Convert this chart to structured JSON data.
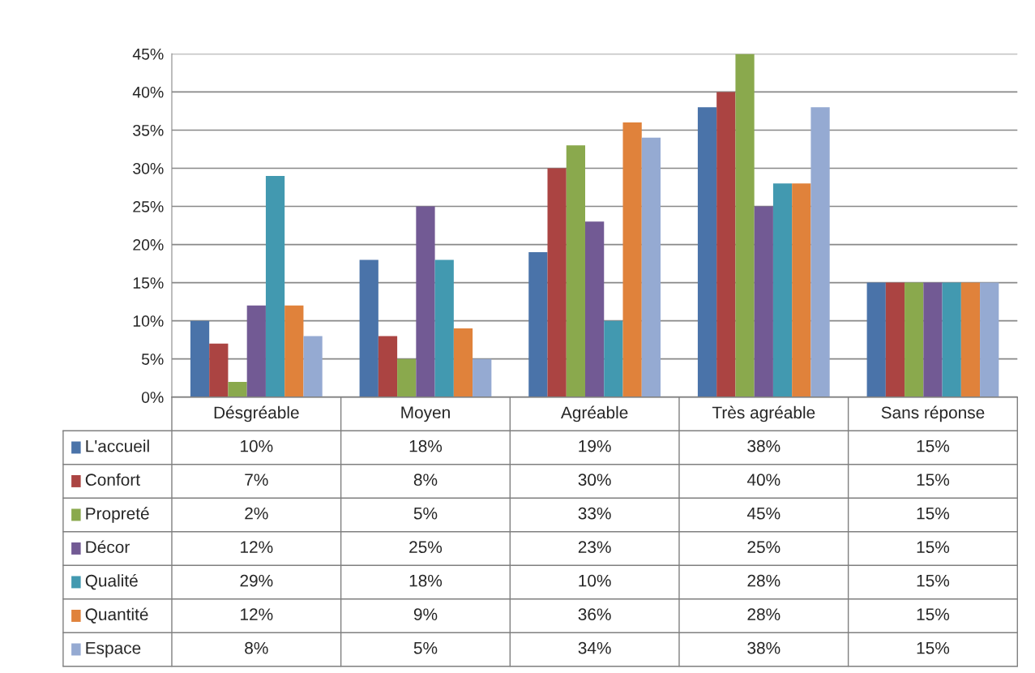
{
  "chart_data": {
    "type": "bar",
    "categories": [
      "Désgréable",
      "Moyen",
      "Agréable",
      "Très agréable",
      "Sans réponse"
    ],
    "series": [
      {
        "name": "L'accueil",
        "color": "#4a73a9",
        "values": [
          10,
          18,
          19,
          38,
          15
        ],
        "value_labels": [
          "10%",
          "18%",
          "19%",
          "38%",
          "15%"
        ]
      },
      {
        "name": "Confort",
        "color": "#ab4442",
        "values": [
          7,
          8,
          30,
          40,
          15
        ],
        "value_labels": [
          "7%",
          "8%",
          "30%",
          "40%",
          "15%"
        ]
      },
      {
        "name": "Propreté",
        "color": "#8aa94d",
        "values": [
          2,
          5,
          33,
          45,
          15
        ],
        "value_labels": [
          "2%",
          "5%",
          "33%",
          "45%",
          "15%"
        ]
      },
      {
        "name": "Décor",
        "color": "#725a94",
        "values": [
          12,
          25,
          23,
          25,
          15
        ],
        "value_labels": [
          "12%",
          "25%",
          "23%",
          "25%",
          "15%"
        ]
      },
      {
        "name": "Qualité",
        "color": "#4299b0",
        "values": [
          29,
          18,
          10,
          28,
          15
        ],
        "value_labels": [
          "29%",
          "18%",
          "10%",
          "28%",
          "15%"
        ]
      },
      {
        "name": "Quantité",
        "color": "#e0823b",
        "values": [
          12,
          9,
          36,
          28,
          15
        ],
        "value_labels": [
          "12%",
          "9%",
          "36%",
          "28%",
          "15%"
        ]
      },
      {
        "name": "Espace",
        "color": "#95aad2",
        "values": [
          8,
          5,
          34,
          38,
          15
        ],
        "value_labels": [
          "8%",
          "5%",
          "34%",
          "38%",
          "15%"
        ]
      }
    ],
    "ylim": [
      0,
      45
    ],
    "yticks": [
      {
        "value": 0,
        "label": "0%"
      },
      {
        "value": 5,
        "label": "5%"
      },
      {
        "value": 10,
        "label": "10%"
      },
      {
        "value": 15,
        "label": "15%"
      },
      {
        "value": 20,
        "label": "20%"
      },
      {
        "value": 25,
        "label": "25%"
      },
      {
        "value": 30,
        "label": "30%"
      },
      {
        "value": 35,
        "label": "35%"
      },
      {
        "value": 40,
        "label": "40%"
      },
      {
        "value": 45,
        "label": "45%"
      }
    ],
    "grid": "y",
    "legend": "bottom"
  }
}
